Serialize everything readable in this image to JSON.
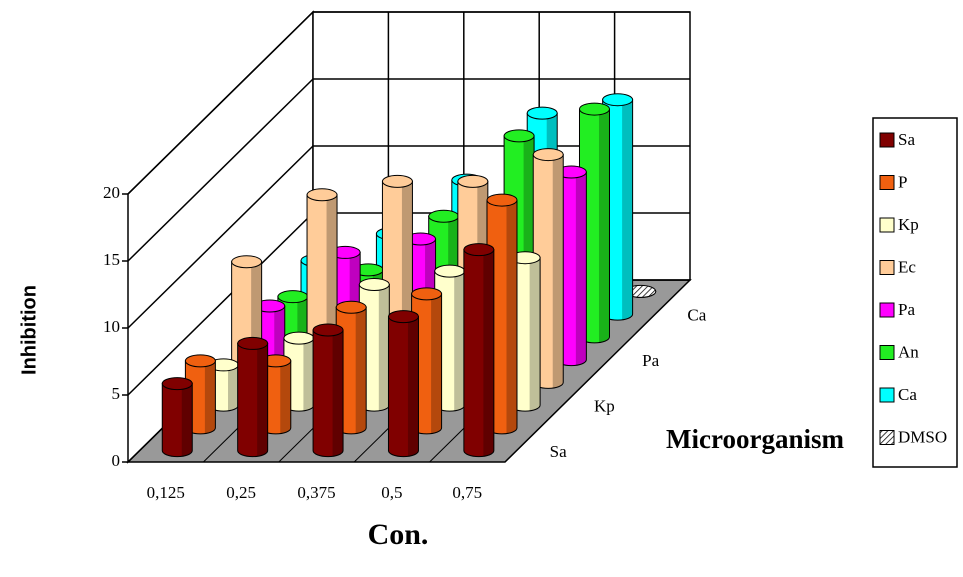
{
  "chart_data": {
    "type": "bar3d",
    "categories": [
      "0,125",
      "0,25",
      "0,375",
      "0,5",
      "0,75"
    ],
    "series": [
      {
        "name": "Sa",
        "color": "#800000",
        "values": [
          5,
          8,
          9,
          10,
          15
        ]
      },
      {
        "name": "P",
        "color": "#f06010",
        "values": [
          5,
          5,
          9,
          10,
          17
        ]
      },
      {
        "name": "Kp",
        "color": "#ffffcc",
        "values": [
          3,
          5,
          9,
          10,
          11
        ]
      },
      {
        "name": "Ec",
        "color": "#ffcc99",
        "values": [
          9,
          14,
          15,
          15,
          17
        ]
      },
      {
        "name": "Pa",
        "color": "#ff00ff",
        "values": [
          4,
          8,
          9,
          8,
          14
        ]
      },
      {
        "name": "An",
        "color": "#22ee22",
        "values": [
          3,
          5,
          9,
          15,
          17
        ]
      },
      {
        "name": "Ca",
        "color": "#00ffff",
        "values": [
          4,
          6,
          10,
          15,
          16
        ]
      },
      {
        "name": "DMSO",
        "color": "#ffffff",
        "hatched": true,
        "values": [
          0,
          0,
          0,
          0,
          0
        ]
      }
    ],
    "depth_labels": [
      "Sa",
      "Kp",
      "Pa",
      "Ca"
    ],
    "ylim": [
      0,
      20
    ],
    "yticks": [
      0,
      5,
      10,
      15,
      20
    ],
    "grid": true,
    "x_label": "Con.",
    "y_label": "Inhibition",
    "depth_label": "Microorganism",
    "legend": "right"
  }
}
